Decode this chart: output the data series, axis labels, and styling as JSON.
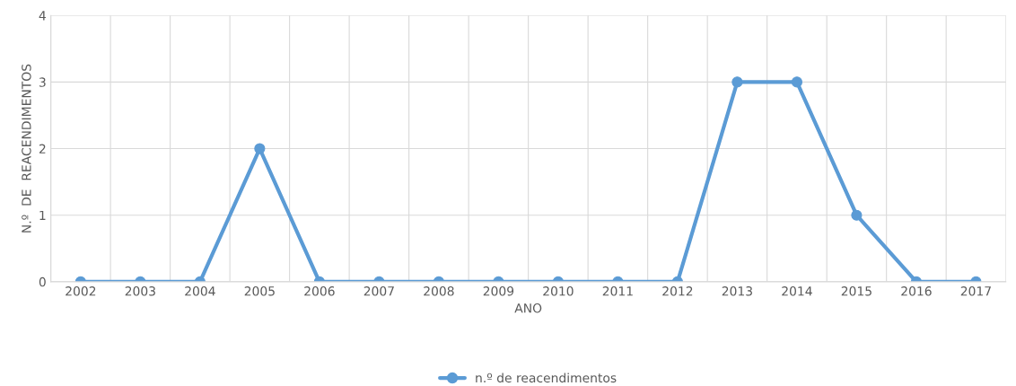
{
  "chart_data": {
    "type": "line",
    "xlabel": "ANO",
    "ylabel": "N.º  DE  REACENDIMENTOS",
    "categories": [
      "2002",
      "2003",
      "2004",
      "2005",
      "2006",
      "2007",
      "2008",
      "2009",
      "2010",
      "2011",
      "2012",
      "2013",
      "2014",
      "2015",
      "2016",
      "2017"
    ],
    "series": [
      {
        "name": "n.º de reacendimentos",
        "color": "#5b9bd5",
        "values": [
          0,
          0,
          0,
          2,
          0,
          0,
          0,
          0,
          0,
          0,
          0,
          3,
          3,
          1,
          0,
          0
        ]
      }
    ],
    "ylim": [
      0,
      4
    ],
    "yticks": [
      0,
      1,
      2,
      3,
      4
    ],
    "grid": true,
    "legend": "bottom",
    "marker": "circle",
    "line_style": "solid"
  }
}
